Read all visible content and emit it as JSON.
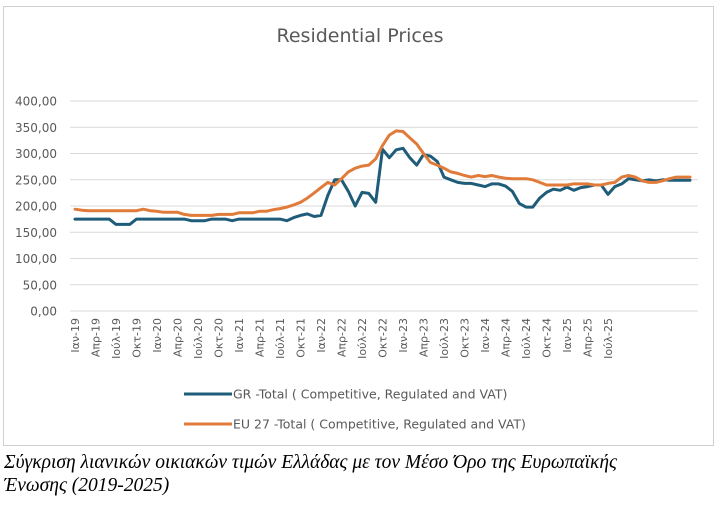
{
  "chart_data": {
    "type": "line",
    "title": "Residential Prices",
    "xlabel": "",
    "ylabel": "",
    "ylim": [
      0,
      400
    ],
    "yticks": [
      "0,00",
      "50,00",
      "100,00",
      "150,00",
      "200,00",
      "250,00",
      "300,00",
      "350,00",
      "400,00"
    ],
    "ytick_values": [
      0,
      50,
      100,
      150,
      200,
      250,
      300,
      350,
      400
    ],
    "grid": true,
    "legend_position": "bottom",
    "x_tick_labels": [
      "Ιαν-19",
      "Απρ-19",
      "Ιούλ-19",
      "Οκτ-19",
      "Ιαν-20",
      "Απρ-20",
      "Ιούλ-20",
      "Οκτ-20",
      "Ιαν-21",
      "Απρ-21",
      "Ιούλ-21",
      "Οκτ-21",
      "Ιαν-22",
      "Απρ-22",
      "Ιούλ-22",
      "Οκτ-22",
      "Ιαν-23",
      "Απρ-23",
      "Ιούλ-23",
      "Οκτ-23",
      "Ιαν-24",
      "Απρ-24",
      "Ιούλ-24",
      "Οκτ-24",
      "Ιαν-25",
      "Απρ-25",
      "Ιούλ-25"
    ],
    "x_tick_every_n_points": 3,
    "x_period": "monthly, Jan 2019 – Jul 2025",
    "series": [
      {
        "name": "GR -Total ( Competitive, Regulated and VAT)",
        "color": "#1f5c7a",
        "values": [
          175,
          175,
          175,
          175,
          175,
          175,
          165,
          165,
          165,
          175,
          175,
          175,
          175,
          175,
          175,
          175,
          175,
          172,
          172,
          172,
          175,
          175,
          175,
          172,
          175,
          175,
          175,
          175,
          175,
          175,
          175,
          172,
          178,
          182,
          185,
          180,
          182,
          220,
          250,
          250,
          228,
          200,
          226,
          224,
          207,
          308,
          292,
          307,
          310,
          292,
          278,
          298,
          295,
          285,
          255,
          250,
          245,
          243,
          243,
          240,
          237,
          242,
          242,
          238,
          228,
          205,
          198,
          198,
          215,
          226,
          232,
          230,
          236,
          230,
          235,
          237,
          240,
          240,
          222,
          237,
          242,
          252,
          250,
          248,
          250,
          248,
          250,
          249,
          249,
          249,
          249
        ]
      },
      {
        "name": "EU 27 -Total ( Competitive, Regulated and VAT)",
        "color": "#e07b39",
        "values": [
          194,
          192,
          191,
          191,
          191,
          191,
          191,
          191,
          191,
          191,
          194,
          191,
          190,
          188,
          188,
          188,
          184,
          182,
          182,
          182,
          182,
          184,
          184,
          184,
          187,
          187,
          187,
          190,
          190,
          193,
          195,
          198,
          202,
          207,
          215,
          225,
          235,
          245,
          240,
          252,
          265,
          272,
          276,
          278,
          290,
          315,
          335,
          343,
          342,
          330,
          318,
          300,
          283,
          278,
          272,
          265,
          262,
          258,
          255,
          258,
          256,
          258,
          255,
          253,
          252,
          252,
          252,
          250,
          245,
          240,
          240,
          240,
          240,
          242,
          242,
          242,
          240,
          240,
          243,
          245,
          255,
          258,
          255,
          248,
          245,
          245,
          248,
          252,
          255,
          255,
          255
        ]
      }
    ]
  },
  "caption": {
    "line1": "Σύγκριση λιανικών οικιακών τιμών Ελλάδας με τον Μέσο Όρο της Ευρωπαϊκής",
    "line2": "Ένωσης (2019-2025)"
  }
}
